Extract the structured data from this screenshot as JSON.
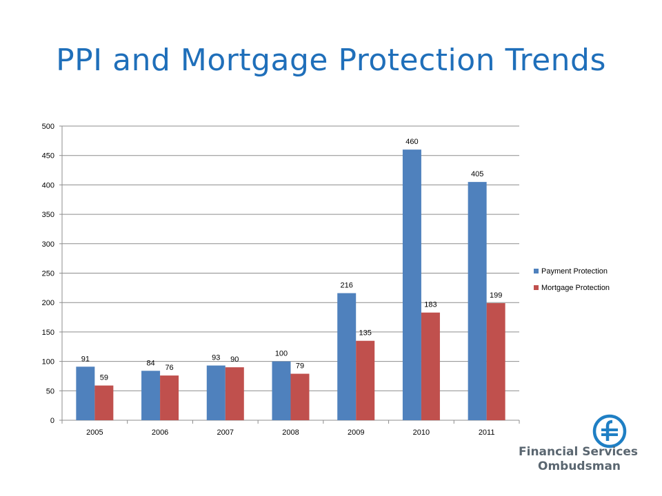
{
  "slide": {
    "title": "PPI and Mortgage Protection Trends"
  },
  "logo": {
    "line1": "Financial Services",
    "line2": "Ombudsman",
    "mark_text": "f",
    "color": "#1f7fc4"
  },
  "chart_data": {
    "type": "bar",
    "title": "",
    "xlabel": "",
    "ylabel": "",
    "categories": [
      "2005",
      "2006",
      "2007",
      "2008",
      "2009",
      "2010",
      "2011"
    ],
    "series": [
      {
        "name": "Payment Protection",
        "color": "#4f81bd",
        "values": [
          91,
          84,
          93,
          100,
          216,
          460,
          405
        ]
      },
      {
        "name": "Mortgage Protection",
        "color": "#c0504d",
        "values": [
          59,
          76,
          90,
          79,
          135,
          183,
          199
        ]
      }
    ],
    "ylim": [
      0,
      500
    ],
    "yticks": [
      0,
      50,
      100,
      150,
      200,
      250,
      300,
      350,
      400,
      450,
      500
    ],
    "grid": true,
    "legend": "right",
    "data_labels": true
  }
}
